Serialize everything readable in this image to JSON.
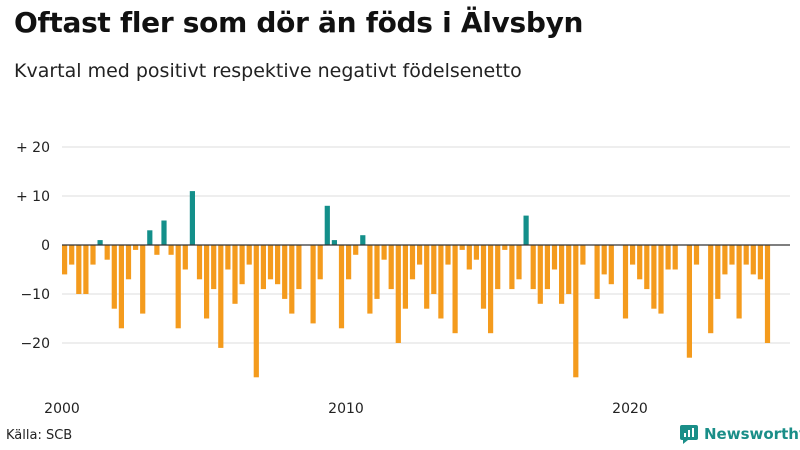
{
  "header": {
    "title": "Oftast fler som dör än föds i Älvsbyn",
    "subtitle": "Kvartal med positivt respektive negativt födelsenetto"
  },
  "footer": {
    "source": "Källa: SCB",
    "brand": "Newsworthy",
    "brand_icon": "newsworthy-logo-icon"
  },
  "colors": {
    "positive": "#138f8a",
    "negative": "#f49b1d",
    "grid": "#dddddd",
    "zero_line": "#333333"
  },
  "chart_data": {
    "type": "bar",
    "x_start_year": 2000,
    "periods_per_year": 4,
    "values": [
      -6,
      -4,
      -10,
      -10,
      -4,
      1,
      -3,
      -13,
      -17,
      -7,
      -1,
      -14,
      3,
      -2,
      5,
      -2,
      -17,
      -5,
      11,
      -7,
      -15,
      -9,
      -21,
      -5,
      -12,
      -8,
      -4,
      -27,
      -9,
      -7,
      -8,
      -11,
      -14,
      -9,
      0,
      -16,
      -7,
      8,
      1,
      -17,
      -7,
      -2,
      2,
      -14,
      -11,
      -3,
      -9,
      -20,
      -13,
      -7,
      -4,
      -13,
      -10,
      -15,
      -4,
      -18,
      -1,
      -5,
      -3,
      -13,
      -18,
      -9,
      -1,
      -9,
      -7,
      6,
      -9,
      -12,
      -9,
      -5,
      -12,
      -10,
      -27,
      -4,
      0,
      -11,
      -6,
      -8,
      0,
      -15,
      -4,
      -7,
      -9,
      -13,
      -14,
      -5,
      -5,
      0,
      -23,
      -4,
      0,
      -18,
      -11,
      -6,
      -4,
      -15,
      -4,
      -6,
      -7,
      -20
    ],
    "x_ticks": [
      "2000",
      "2010",
      "2020"
    ],
    "y_ticks": [
      "+ 20",
      "+ 10",
      "0",
      "−10",
      "−20"
    ],
    "y_tick_values": [
      20,
      10,
      0,
      -10,
      -20
    ],
    "ylim": [
      -28,
      20
    ]
  }
}
